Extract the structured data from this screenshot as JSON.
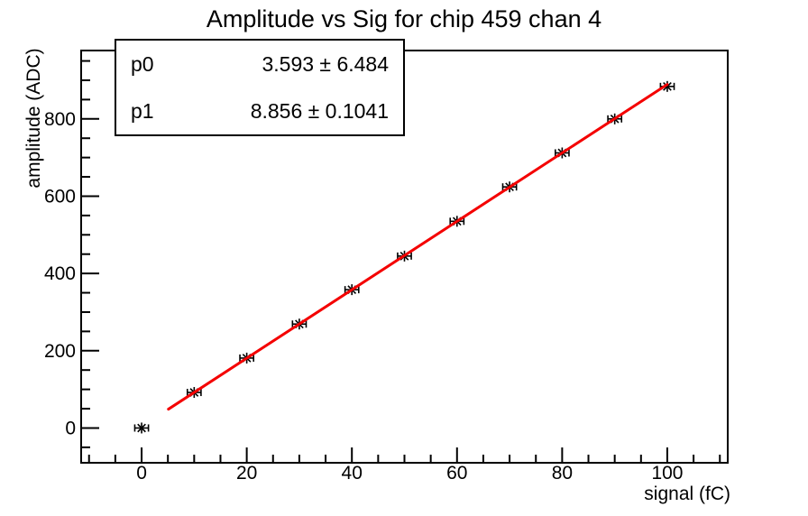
{
  "chart_data": {
    "type": "scatter",
    "title": "Amplitude vs Sig for chip 459 chan 4",
    "xlabel": "signal (fC)",
    "ylabel": "amplitude (ADC)",
    "x": [
      0,
      10,
      20,
      30,
      40,
      50,
      60,
      70,
      80,
      90,
      100
    ],
    "y": [
      0,
      92,
      181,
      269,
      358,
      445,
      535,
      624,
      712,
      800,
      884
    ],
    "xerr": 1.3,
    "xlim": [
      -11.5,
      111.5
    ],
    "ylim": [
      -90,
      977
    ],
    "xticks": [
      0,
      20,
      40,
      60,
      80,
      100
    ],
    "yticks": [
      0,
      200,
      400,
      600,
      800
    ],
    "x_minor_step": 5,
    "x_minor_range": [
      -10,
      110
    ],
    "y_minor_step": 50,
    "y_minor_range": [
      -50,
      950
    ],
    "fit": {
      "p0": 3.593,
      "p0_err": 6.484,
      "p1": 8.856,
      "p1_err": 0.1041,
      "line_x_start": 5.1,
      "line_x_end": 100
    },
    "marker": "asterisk-with-x-error-bars",
    "grid": false,
    "legend_position": "none"
  },
  "stats_box": {
    "rows": [
      {
        "label": "p0",
        "value": "3.593 ± 6.484"
      },
      {
        "label": "p1",
        "value": "8.856 ± 0.1041"
      }
    ]
  },
  "colors": {
    "fit_line": "#f40000",
    "axes": "#000000",
    "text": "#000000",
    "background": "#ffffff"
  }
}
